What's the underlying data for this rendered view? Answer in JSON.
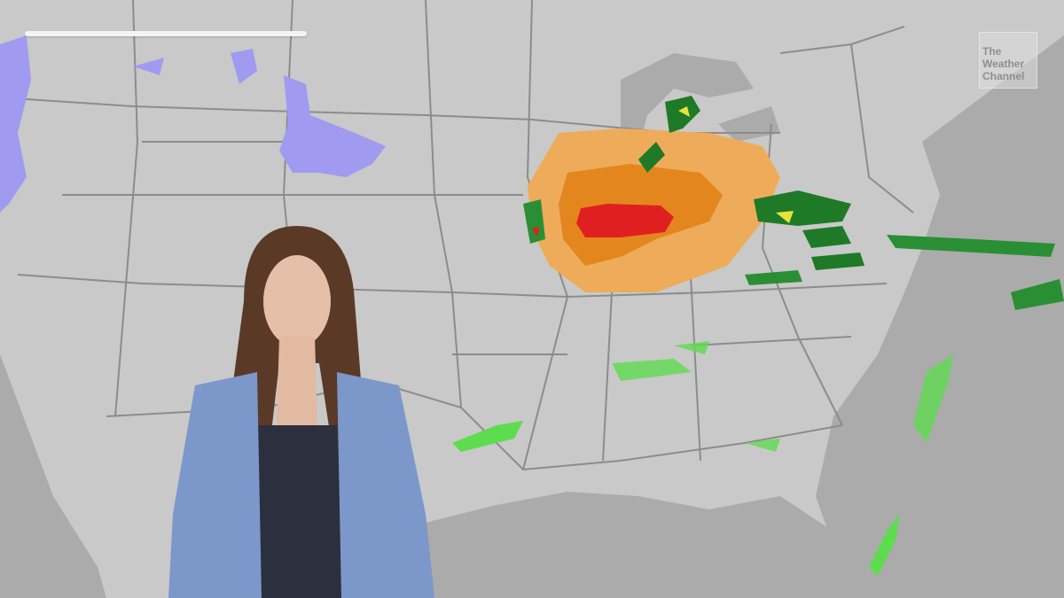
{
  "logo": {
    "line1": "The",
    "line2": "Weather",
    "line3": "Channel"
  },
  "colors": {
    "land": "#c9c9c9",
    "water": "#a9a9a9",
    "borders": "#8a8a8a",
    "snow": "#9f9af2",
    "rain_light": "#5edc4f",
    "rain_heavy": "#1f7a27",
    "rain_yellow": "#e8e23a",
    "risk_low": "#eeac5a",
    "risk_mid": "#e4861e",
    "risk_high": "#e02020"
  },
  "progress": {
    "fraction": 1.0
  }
}
